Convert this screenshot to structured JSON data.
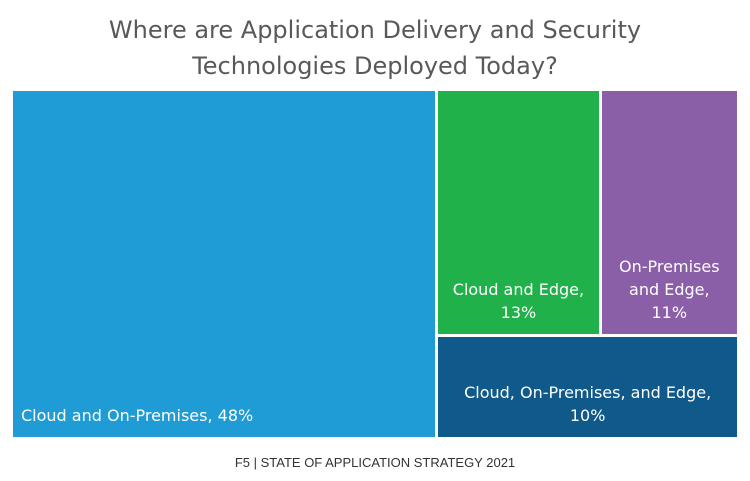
{
  "chart_data": {
    "type": "treemap",
    "title": "Where are Application Delivery and Security Technologies Deployed Today?",
    "categories": [
      "Cloud and On-Premises,",
      "Cloud and Edge,",
      "On-Premises and Edge,",
      "Cloud, On-Premises, and Edge,"
    ],
    "values": [
      48,
      13,
      11,
      10
    ],
    "value_labels": [
      "48%",
      "13%",
      "11%",
      "10%"
    ],
    "colors": [
      "#1f9bd5",
      "#21b14b",
      "#8b5ea8",
      "#0f5a8a"
    ],
    "source": "F5 |  STATE OF APPLICATION STRATEGY 2021"
  }
}
